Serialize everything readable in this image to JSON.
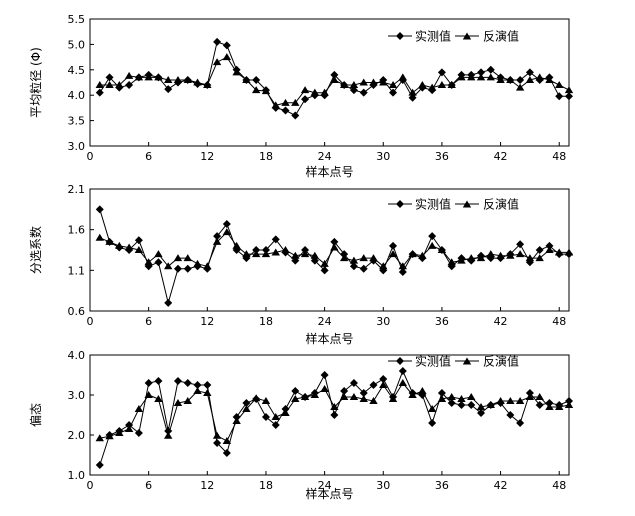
{
  "chart_data": [
    {
      "type": "line",
      "xlabel": "样本点号",
      "ylabel": "平均粒径 (Φ)",
      "xlim": [
        0,
        49
      ],
      "ylim": [
        3.0,
        5.5
      ],
      "xticks": [
        0,
        6,
        12,
        18,
        24,
        30,
        36,
        42,
        48
      ],
      "yticks": [
        3.0,
        3.5,
        4.0,
        4.5,
        5.0,
        5.5
      ],
      "ytick_labels": [
        "3.0",
        "3.5",
        "4.0",
        "4.5",
        "5.0",
        "5.5"
      ],
      "legend_position": "top-right",
      "x": [
        1,
        2,
        3,
        4,
        5,
        6,
        7,
        8,
        9,
        10,
        11,
        12,
        13,
        14,
        15,
        16,
        17,
        18,
        19,
        20,
        21,
        22,
        23,
        24,
        25,
        26,
        27,
        28,
        29,
        30,
        31,
        32,
        33,
        34,
        35,
        36,
        37,
        38,
        39,
        40,
        41,
        42,
        43,
        44,
        45,
        46,
        47,
        48,
        49
      ],
      "series": [
        {
          "name": "实测值",
          "marker": "diamond",
          "values": [
            4.05,
            4.35,
            4.15,
            4.2,
            4.35,
            4.4,
            4.35,
            4.12,
            4.25,
            4.3,
            4.22,
            4.2,
            5.05,
            4.98,
            4.5,
            4.3,
            4.3,
            4.1,
            3.75,
            3.7,
            3.6,
            3.92,
            4.0,
            4.0,
            4.4,
            4.2,
            4.1,
            4.05,
            4.2,
            4.3,
            4.05,
            4.3,
            3.95,
            4.15,
            4.1,
            4.45,
            4.2,
            4.4,
            4.4,
            4.45,
            4.5,
            4.35,
            4.3,
            4.3,
            4.45,
            4.3,
            4.35,
            3.98,
            3.98
          ]
        },
        {
          "name": "反演值",
          "marker": "triangle",
          "values": [
            4.2,
            4.2,
            4.2,
            4.38,
            4.35,
            4.35,
            4.35,
            4.3,
            4.3,
            4.3,
            4.25,
            4.2,
            4.65,
            4.75,
            4.45,
            4.3,
            4.1,
            4.08,
            3.8,
            3.85,
            3.85,
            4.1,
            4.05,
            4.05,
            4.3,
            4.2,
            4.2,
            4.25,
            4.25,
            4.25,
            4.2,
            4.35,
            4.05,
            4.2,
            4.15,
            4.2,
            4.2,
            4.35,
            4.35,
            4.35,
            4.35,
            4.3,
            4.3,
            4.15,
            4.3,
            4.35,
            4.3,
            4.2,
            4.1
          ]
        }
      ]
    },
    {
      "type": "line",
      "xlabel": "样本点号",
      "ylabel": "分选系数",
      "xlim": [
        0,
        49
      ],
      "ylim": [
        0.6,
        2.1
      ],
      "xticks": [
        0,
        6,
        12,
        18,
        24,
        30,
        36,
        42,
        48
      ],
      "yticks": [
        0.6,
        1.1,
        1.6,
        2.1
      ],
      "ytick_labels": [
        "0.6",
        "1.1",
        "1.6",
        "2.1"
      ],
      "legend_position": "top-right",
      "x": [
        1,
        2,
        3,
        4,
        5,
        6,
        7,
        8,
        9,
        10,
        11,
        12,
        13,
        14,
        15,
        16,
        17,
        18,
        19,
        20,
        21,
        22,
        23,
        24,
        25,
        26,
        27,
        28,
        29,
        30,
        31,
        32,
        33,
        34,
        35,
        36,
        37,
        38,
        39,
        40,
        41,
        42,
        43,
        44,
        45,
        46,
        47,
        48,
        49
      ],
      "series": [
        {
          "name": "实测值",
          "marker": "diamond",
          "values": [
            1.85,
            1.45,
            1.38,
            1.35,
            1.47,
            1.15,
            1.2,
            0.7,
            1.12,
            1.12,
            1.15,
            1.12,
            1.52,
            1.67,
            1.35,
            1.25,
            1.35,
            1.35,
            1.48,
            1.32,
            1.22,
            1.35,
            1.22,
            1.1,
            1.45,
            1.3,
            1.15,
            1.12,
            1.22,
            1.1,
            1.4,
            1.08,
            1.3,
            1.25,
            1.52,
            1.35,
            1.15,
            1.25,
            1.22,
            1.28,
            1.25,
            1.25,
            1.3,
            1.42,
            1.2,
            1.35,
            1.4,
            1.3,
            1.3
          ]
        },
        {
          "name": "反演值",
          "marker": "triangle",
          "values": [
            1.5,
            1.45,
            1.4,
            1.38,
            1.35,
            1.2,
            1.3,
            1.15,
            1.25,
            1.25,
            1.18,
            1.15,
            1.45,
            1.57,
            1.4,
            1.3,
            1.3,
            1.3,
            1.32,
            1.35,
            1.28,
            1.3,
            1.28,
            1.18,
            1.38,
            1.25,
            1.22,
            1.25,
            1.25,
            1.15,
            1.3,
            1.15,
            1.3,
            1.28,
            1.4,
            1.35,
            1.2,
            1.22,
            1.25,
            1.25,
            1.3,
            1.28,
            1.28,
            1.3,
            1.25,
            1.25,
            1.35,
            1.32,
            1.32
          ]
        }
      ]
    },
    {
      "type": "line",
      "xlabel": "样本点号",
      "ylabel": "偏态",
      "xlim": [
        0,
        49
      ],
      "ylim": [
        1.0,
        4.0
      ],
      "xticks": [
        0,
        6,
        12,
        18,
        24,
        30,
        36,
        42,
        48
      ],
      "yticks": [
        1.0,
        2.0,
        3.0,
        4.0
      ],
      "ytick_labels": [
        "1.0",
        "2.0",
        "3.0",
        "4.0"
      ],
      "legend_position": "top-right",
      "x": [
        1,
        2,
        3,
        4,
        5,
        6,
        7,
        8,
        9,
        10,
        11,
        12,
        13,
        14,
        15,
        16,
        17,
        18,
        19,
        20,
        21,
        22,
        23,
        24,
        25,
        26,
        27,
        28,
        29,
        30,
        31,
        32,
        33,
        34,
        35,
        36,
        37,
        38,
        39,
        40,
        41,
        42,
        43,
        44,
        45,
        46,
        47,
        48,
        49
      ],
      "series": [
        {
          "name": "实测值",
          "marker": "diamond",
          "values": [
            1.25,
            2.0,
            2.1,
            2.25,
            2.05,
            3.3,
            3.35,
            2.1,
            3.35,
            3.3,
            3.25,
            3.25,
            1.8,
            1.55,
            2.45,
            2.8,
            2.9,
            2.45,
            2.25,
            2.65,
            3.1,
            2.95,
            3.05,
            3.5,
            2.5,
            3.1,
            3.3,
            3.05,
            3.25,
            3.4,
            2.95,
            3.6,
            3.05,
            3.0,
            2.3,
            3.05,
            2.8,
            2.75,
            2.75,
            2.55,
            2.75,
            2.8,
            2.5,
            2.3,
            3.05,
            2.75,
            2.8,
            2.75,
            2.85
          ]
        },
        {
          "name": "反演值",
          "marker": "triangle",
          "values": [
            1.92,
            1.97,
            2.05,
            2.15,
            2.65,
            3.0,
            2.9,
            1.98,
            2.8,
            2.85,
            3.1,
            3.05,
            1.98,
            1.85,
            2.35,
            2.65,
            2.92,
            2.85,
            2.45,
            2.55,
            2.9,
            2.95,
            3.0,
            3.15,
            2.7,
            2.95,
            2.95,
            2.9,
            2.85,
            3.25,
            2.9,
            3.3,
            3.0,
            3.1,
            2.65,
            2.9,
            2.95,
            2.9,
            2.95,
            2.7,
            2.75,
            2.85,
            2.85,
            2.85,
            2.95,
            2.95,
            2.7,
            2.7,
            2.75
          ]
        }
      ]
    }
  ]
}
